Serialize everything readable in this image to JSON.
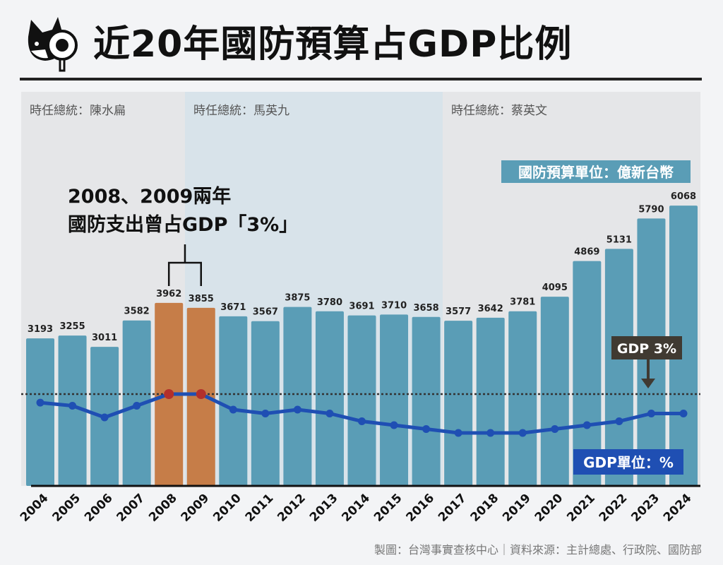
{
  "title": "近20年國防預算占GDP比例",
  "credit": "製圖：台灣事實查核中心｜資料來源：主計總處、行政院、國防部",
  "chart_data": {
    "type": "bar",
    "categories": [
      "2004",
      "2005",
      "2006",
      "2007",
      "2008",
      "2009",
      "2010",
      "2011",
      "2012",
      "2013",
      "2014",
      "2015",
      "2016",
      "2017",
      "2018",
      "2019",
      "2020",
      "2021",
      "2022",
      "2023",
      "2024"
    ],
    "series": [
      {
        "name": "國防預算單位：億新台幣",
        "type": "bar",
        "values": [
          3193,
          3255,
          3011,
          3582,
          3962,
          3855,
          3671,
          3567,
          3875,
          3780,
          3691,
          3710,
          3658,
          3577,
          3642,
          3781,
          4095,
          4869,
          5131,
          5790,
          6068
        ]
      },
      {
        "name": "GDP單位：%",
        "type": "line",
        "values": [
          2.78,
          2.7,
          2.4,
          2.7,
          3.0,
          3.0,
          2.6,
          2.5,
          2.6,
          2.5,
          2.3,
          2.2,
          2.1,
          2.0,
          2.0,
          2.0,
          2.1,
          2.2,
          2.3,
          2.5,
          2.5
        ]
      }
    ],
    "highlighted": [
      "2008",
      "2009"
    ],
    "reference_line": {
      "value": 3,
      "label": "GDP 3%",
      "style": "dotted"
    },
    "regions": [
      {
        "label": "時任總統：陳水扁",
        "from": "2004",
        "to": "2008",
        "color": "#e5e6e8"
      },
      {
        "label": "時任總統：馬英九",
        "from": "2008",
        "to": "2016",
        "color": "#d8e3ea"
      },
      {
        "label": "時任總統：蔡英文",
        "from": "2016",
        "to": "2024",
        "color": "#e5e6e8"
      }
    ],
    "annotation": "2008、2009兩年\n國防支出曾占GDP「3%」",
    "annotation_lines": [
      "2008、2009兩年",
      "國防支出曾占GDP「3%」"
    ],
    "colors": {
      "bar": "#5a9db6",
      "bar_highlight": "#c67d48",
      "line": "#1f4fb3",
      "line_highlight_dot": "#b3302b",
      "ref_label_bg": "#403a32"
    }
  }
}
